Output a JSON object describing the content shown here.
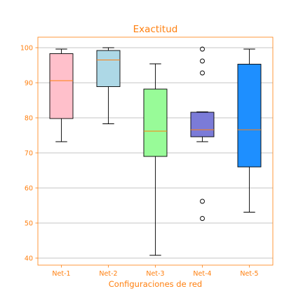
{
  "chart_data": {
    "type": "boxplot",
    "title": "Exactitud",
    "xlabel": "Configuraciones de red",
    "ylabel": "",
    "ylim": [
      38,
      103
    ],
    "yticks": [
      40,
      50,
      60,
      70,
      80,
      90,
      100
    ],
    "grid": "y",
    "categories": [
      "Net-1",
      "Net-2",
      "Net-3",
      "Net-4",
      "Net-5"
    ],
    "boxes": [
      {
        "name": "Net-1",
        "whisker_low": 73.2,
        "q1": 79.8,
        "median": 90.6,
        "q3": 98.3,
        "whisker_high": 99.6,
        "outliers": [],
        "color": "#ffc0cb"
      },
      {
        "name": "Net-2",
        "whisker_low": 78.3,
        "q1": 88.9,
        "median": 96.5,
        "q3": 99.2,
        "whisker_high": 100.0,
        "outliers": [],
        "color": "#add8e6"
      },
      {
        "name": "Net-3",
        "whisker_low": 40.8,
        "q1": 69.0,
        "median": 76.2,
        "q3": 88.2,
        "whisker_high": 95.4,
        "outliers": [],
        "color": "#98fb98"
      },
      {
        "name": "Net-4",
        "whisker_low": 73.2,
        "q1": 74.6,
        "median": 76.6,
        "q3": 81.6,
        "whisker_high": 81.7,
        "outliers": [
          99.6,
          96.2,
          92.8,
          56.2,
          51.3
        ],
        "color": "#7b7bd8"
      },
      {
        "name": "Net-5",
        "whisker_low": 53.1,
        "q1": 66.0,
        "median": 76.6,
        "q3": 95.3,
        "whisker_high": 99.6,
        "outliers": [],
        "color": "#1e8fff"
      }
    ],
    "accent_color": "#ff7f0e",
    "median_color": "#ff7f0e"
  }
}
